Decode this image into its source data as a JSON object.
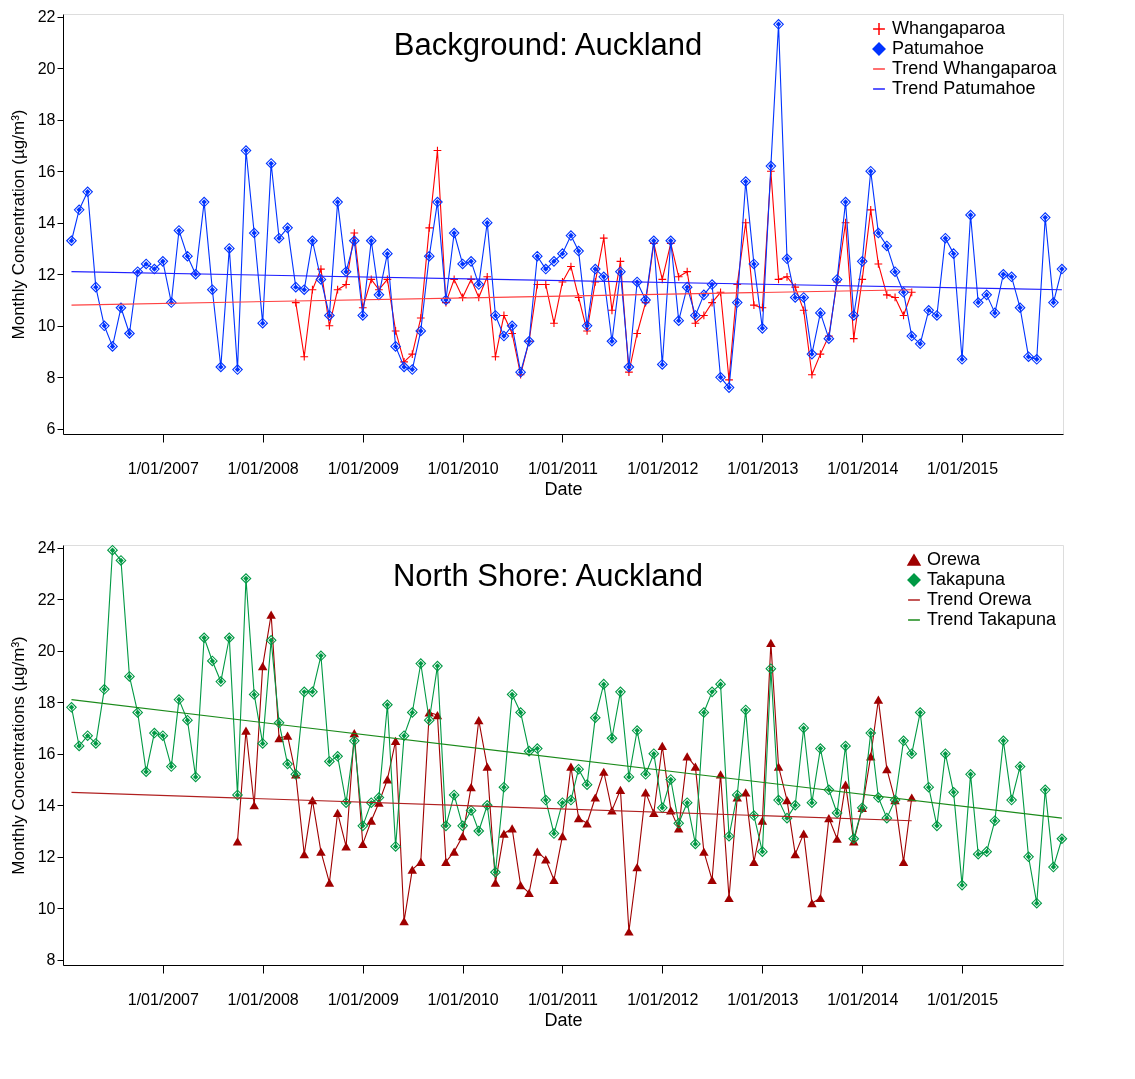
{
  "chart_data": [
    {
      "type": "line",
      "title": "Background: Auckland",
      "xlabel": "Date",
      "ylabel": "Monthly Concentration (µg/m³)",
      "legend": "top right",
      "xlim": [
        "2006-01-01",
        "2016-01-05"
      ],
      "ylim": [
        5.8,
        22.1
      ],
      "yticks": [
        6,
        8,
        10,
        12,
        14,
        16,
        18,
        20,
        22
      ],
      "xticks": [
        {
          "value": "2007-01-01",
          "label": "1/01/2007"
        },
        {
          "value": "2008-01-01",
          "label": "1/01/2008"
        },
        {
          "value": "2009-01-01",
          "label": "1/01/2009"
        },
        {
          "value": "2010-01-01",
          "label": "1/01/2010"
        },
        {
          "value": "2011-01-01",
          "label": "1/01/2011"
        },
        {
          "value": "2012-01-01",
          "label": "1/01/2012"
        },
        {
          "value": "2013-01-01",
          "label": "1/01/2013"
        },
        {
          "value": "2014-01-01",
          "label": "1/01/2014"
        },
        {
          "value": "2015-01-01",
          "label": "1/01/2015"
        }
      ],
      "series": [
        {
          "name": "Whangaparoa",
          "color": "#ff0000",
          "type": "line",
          "marker": "cross",
          "x": [
            "2008-05",
            "2008-06",
            "2008-07",
            "2008-08",
            "2008-09",
            "2008-10",
            "2008-11",
            "2008-12",
            "2009-01",
            "2009-02",
            "2009-03",
            "2009-04",
            "2009-05",
            "2009-06",
            "2009-07",
            "2009-08",
            "2009-09",
            "2009-10",
            "2009-11",
            "2009-12",
            "2010-01",
            "2010-02",
            "2010-03",
            "2010-04",
            "2010-05",
            "2010-06",
            "2010-07",
            "2010-08",
            "2010-09",
            "2010-10",
            "2010-11",
            "2010-12",
            "2011-01",
            "2011-02",
            "2011-03",
            "2011-04",
            "2011-05",
            "2011-06",
            "2011-07",
            "2011-08",
            "2011-09",
            "2011-10",
            "2011-11",
            "2011-12",
            "2012-01",
            "2012-02",
            "2012-03",
            "2012-04",
            "2012-05",
            "2012-06",
            "2012-07",
            "2012-08",
            "2012-09",
            "2012-10",
            "2012-11",
            "2012-12",
            "2013-01",
            "2013-02",
            "2013-03",
            "2013-04",
            "2013-05",
            "2013-06",
            "2013-07",
            "2013-08",
            "2013-09",
            "2013-10",
            "2013-11",
            "2013-12",
            "2014-01",
            "2014-02",
            "2014-03",
            "2014-04",
            "2014-05",
            "2014-06",
            "2014-07"
          ],
          "values": [
            10.9,
            8.8,
            11.4,
            12.2,
            10.0,
            11.4,
            11.6,
            13.6,
            10.7,
            11.8,
            11.4,
            11.8,
            9.8,
            8.6,
            8.9,
            10.3,
            13.8,
            16.8,
            10.9,
            11.8,
            11.1,
            11.8,
            11.1,
            11.9,
            8.8,
            10.4,
            9.7,
            8.1,
            9.4,
            11.6,
            11.6,
            10.1,
            11.7,
            12.3,
            11.1,
            9.8,
            11.7,
            13.4,
            10.6,
            12.5,
            8.2,
            9.7,
            10.9,
            13.2,
            11.8,
            13.2,
            11.9,
            12.1,
            10.1,
            10.4,
            10.9,
            11.3,
            7.9,
            11.6,
            14.0,
            10.8,
            10.7,
            16.0,
            11.8,
            11.9,
            11.5,
            10.6,
            8.1,
            8.9,
            9.6,
            11.7,
            14.0,
            9.5,
            11.8,
            14.5,
            12.4,
            11.2,
            11.1,
            10.4,
            11.3
          ]
        },
        {
          "name": "Patumahoe",
          "color": "#0033ff",
          "type": "line",
          "marker": "diamond",
          "x": [
            "2006-02",
            "2006-03",
            "2006-04",
            "2006-05",
            "2006-06",
            "2006-07",
            "2006-08",
            "2006-09",
            "2006-10",
            "2006-11",
            "2006-12",
            "2007-01",
            "2007-02",
            "2007-03",
            "2007-04",
            "2007-05",
            "2007-06",
            "2007-07",
            "2007-08",
            "2007-09",
            "2007-10",
            "2007-11",
            "2007-12",
            "2008-01",
            "2008-02",
            "2008-03",
            "2008-04",
            "2008-05",
            "2008-06",
            "2008-07",
            "2008-08",
            "2008-09",
            "2008-10",
            "2008-11",
            "2008-12",
            "2009-01",
            "2009-02",
            "2009-03",
            "2009-04",
            "2009-05",
            "2009-06",
            "2009-07",
            "2009-08",
            "2009-09",
            "2009-10",
            "2009-11",
            "2009-12",
            "2010-01",
            "2010-02",
            "2010-03",
            "2010-04",
            "2010-05",
            "2010-06",
            "2010-07",
            "2010-08",
            "2010-09",
            "2010-10",
            "2010-11",
            "2010-12",
            "2011-01",
            "2011-02",
            "2011-03",
            "2011-04",
            "2011-05",
            "2011-06",
            "2011-07",
            "2011-08",
            "2011-09",
            "2011-10",
            "2011-11",
            "2011-12",
            "2012-01",
            "2012-02",
            "2012-03",
            "2012-04",
            "2012-05",
            "2012-06",
            "2012-07",
            "2012-08",
            "2012-09",
            "2012-10",
            "2012-11",
            "2012-12",
            "2013-01",
            "2013-02",
            "2013-03",
            "2013-04",
            "2013-05",
            "2013-06",
            "2013-07",
            "2013-08",
            "2013-09",
            "2013-10",
            "2013-11",
            "2013-12",
            "2014-01",
            "2014-02",
            "2014-03",
            "2014-04",
            "2014-05",
            "2014-06",
            "2014-07",
            "2014-08",
            "2014-09",
            "2014-10",
            "2014-11",
            "2014-12",
            "2015-01",
            "2015-02",
            "2015-03",
            "2015-04",
            "2015-05",
            "2015-06",
            "2015-07",
            "2015-08",
            "2015-09",
            "2015-10",
            "2015-11",
            "2015-12",
            "2016-01"
          ],
          "values": [
            13.3,
            14.5,
            15.2,
            11.5,
            10.0,
            9.2,
            10.7,
            9.7,
            12.1,
            12.4,
            12.2,
            12.5,
            10.9,
            13.7,
            12.7,
            12.0,
            14.8,
            11.4,
            8.4,
            13.0,
            8.3,
            16.8,
            13.6,
            10.1,
            16.3,
            13.4,
            13.8,
            11.5,
            11.4,
            13.3,
            11.8,
            10.4,
            14.8,
            12.1,
            13.3,
            10.4,
            13.3,
            11.2,
            12.8,
            9.2,
            8.4,
            8.3,
            9.8,
            12.7,
            14.8,
            11.0,
            13.6,
            12.4,
            12.5,
            11.6,
            14.0,
            10.4,
            9.6,
            10.0,
            8.2,
            9.4,
            12.7,
            12.2,
            12.5,
            12.8,
            13.5,
            12.9,
            10.0,
            12.2,
            11.9,
            9.4,
            12.1,
            8.4,
            11.7,
            11.0,
            13.3,
            8.5,
            13.3,
            10.2,
            11.5,
            10.4,
            11.2,
            11.6,
            8.0,
            7.6,
            10.9,
            15.6,
            12.4,
            9.9,
            16.2,
            21.7,
            12.6,
            11.1,
            11.1,
            8.9,
            10.5,
            9.5,
            11.8,
            14.8,
            10.4,
            12.5,
            16.0,
            13.6,
            13.1,
            12.1,
            11.3,
            9.6,
            9.3,
            10.6,
            10.4,
            13.4,
            12.8,
            8.7,
            14.3,
            10.9,
            11.2,
            10.5,
            12.0,
            11.9,
            10.7,
            8.8,
            8.7,
            14.2,
            10.9,
            12.2
          ]
        },
        {
          "name": "Trend Whangaparoa",
          "color": "#ff4040",
          "type": "line",
          "marker": "none",
          "x": [
            "2006-02",
            "2014-07"
          ],
          "values": [
            10.8,
            11.4
          ]
        },
        {
          "name": "Trend Patumahoe",
          "color": "#2020ff",
          "type": "line",
          "marker": "none",
          "x": [
            "2006-02",
            "2016-01"
          ],
          "values": [
            12.1,
            11.4
          ]
        }
      ]
    },
    {
      "type": "line",
      "title": "North Shore: Auckland",
      "xlabel": "Date",
      "ylabel": "Monthly Concentrations (µg/m³)",
      "legend": "top right",
      "xlim": [
        "2006-01-01",
        "2016-01-05"
      ],
      "ylim": [
        7.8,
        24.1
      ],
      "yticks": [
        8,
        10,
        12,
        14,
        16,
        18,
        20,
        22,
        24
      ],
      "xticks": [
        {
          "value": "2007-01-01",
          "label": "1/01/2007"
        },
        {
          "value": "2008-01-01",
          "label": "1/01/2008"
        },
        {
          "value": "2009-01-01",
          "label": "1/01/2009"
        },
        {
          "value": "2010-01-01",
          "label": "1/01/2010"
        },
        {
          "value": "2011-01-01",
          "label": "1/01/2011"
        },
        {
          "value": "2012-01-01",
          "label": "1/01/2012"
        },
        {
          "value": "2013-01-01",
          "label": "1/01/2013"
        },
        {
          "value": "2014-01-01",
          "label": "1/01/2014"
        },
        {
          "value": "2015-01-01",
          "label": "1/01/2015"
        }
      ],
      "series": [
        {
          "name": "Orewa",
          "color": "#a00000",
          "type": "line",
          "marker": "triangle",
          "x": [
            "2007-10",
            "2007-11",
            "2007-12",
            "2008-01",
            "2008-02",
            "2008-03",
            "2008-04",
            "2008-05",
            "2008-06",
            "2008-07",
            "2008-08",
            "2008-09",
            "2008-10",
            "2008-11",
            "2008-12",
            "2009-01",
            "2009-02",
            "2009-03",
            "2009-04",
            "2009-05",
            "2009-06",
            "2009-07",
            "2009-08",
            "2009-09",
            "2009-10",
            "2009-11",
            "2009-12",
            "2010-01",
            "2010-02",
            "2010-03",
            "2010-04",
            "2010-05",
            "2010-06",
            "2010-07",
            "2010-08",
            "2010-09",
            "2010-10",
            "2010-11",
            "2010-12",
            "2011-01",
            "2011-02",
            "2011-03",
            "2011-04",
            "2011-05",
            "2011-06",
            "2011-07",
            "2011-08",
            "2011-09",
            "2011-10",
            "2011-11",
            "2011-12",
            "2012-01",
            "2012-02",
            "2012-03",
            "2012-04",
            "2012-05",
            "2012-06",
            "2012-07",
            "2012-08",
            "2012-09",
            "2012-10",
            "2012-11",
            "2012-12",
            "2013-01",
            "2013-02",
            "2013-03",
            "2013-04",
            "2013-05",
            "2013-06",
            "2013-07",
            "2013-08",
            "2013-09",
            "2013-10",
            "2013-11",
            "2013-12",
            "2014-01",
            "2014-02",
            "2014-03",
            "2014-04",
            "2014-05",
            "2014-06",
            "2014-07"
          ],
          "values": [
            12.6,
            16.9,
            14.0,
            19.4,
            21.4,
            16.6,
            16.7,
            15.2,
            12.1,
            14.2,
            12.2,
            11.0,
            13.7,
            12.4,
            16.8,
            12.5,
            13.4,
            14.1,
            15.0,
            16.5,
            9.5,
            11.5,
            11.8,
            17.6,
            17.5,
            11.8,
            12.2,
            12.8,
            14.7,
            17.3,
            15.5,
            11.0,
            12.9,
            13.1,
            10.9,
            10.6,
            12.2,
            11.9,
            11.1,
            12.8,
            15.5,
            13.5,
            13.3,
            14.3,
            15.3,
            13.8,
            14.6,
            9.1,
            11.6,
            14.5,
            13.7,
            16.3,
            13.8,
            13.1,
            15.9,
            15.5,
            12.2,
            11.1,
            15.2,
            10.4,
            14.3,
            14.5,
            11.8,
            13.4,
            20.3,
            15.5,
            14.2,
            12.1,
            12.9,
            10.2,
            10.4,
            13.5,
            12.7,
            14.8,
            12.6,
            13.9,
            15.9,
            18.1,
            15.4,
            14.2,
            11.8,
            14.3
          ]
        },
        {
          "name": "Takapuna",
          "color": "#009944",
          "type": "line",
          "marker": "diamond",
          "x": [
            "2006-02",
            "2006-03",
            "2006-04",
            "2006-05",
            "2006-06",
            "2006-07",
            "2006-08",
            "2006-09",
            "2006-10",
            "2006-11",
            "2006-12",
            "2007-01",
            "2007-02",
            "2007-03",
            "2007-04",
            "2007-05",
            "2007-06",
            "2007-07",
            "2007-08",
            "2007-09",
            "2007-10",
            "2007-11",
            "2007-12",
            "2008-01",
            "2008-02",
            "2008-03",
            "2008-04",
            "2008-05",
            "2008-06",
            "2008-07",
            "2008-08",
            "2008-09",
            "2008-10",
            "2008-11",
            "2008-12",
            "2009-01",
            "2009-02",
            "2009-03",
            "2009-04",
            "2009-05",
            "2009-06",
            "2009-07",
            "2009-08",
            "2009-09",
            "2009-10",
            "2009-11",
            "2009-12",
            "2010-01",
            "2010-02",
            "2010-03",
            "2010-04",
            "2010-05",
            "2010-06",
            "2010-07",
            "2010-08",
            "2010-09",
            "2010-10",
            "2010-11",
            "2010-12",
            "2011-01",
            "2011-02",
            "2011-03",
            "2011-04",
            "2011-05",
            "2011-06",
            "2011-07",
            "2011-08",
            "2011-09",
            "2011-10",
            "2011-11",
            "2011-12",
            "2012-01",
            "2012-02",
            "2012-03",
            "2012-04",
            "2012-05",
            "2012-06",
            "2012-07",
            "2012-08",
            "2012-09",
            "2012-10",
            "2012-11",
            "2012-12",
            "2013-01",
            "2013-02",
            "2013-03",
            "2013-04",
            "2013-05",
            "2013-06",
            "2013-07",
            "2013-08",
            "2013-09",
            "2013-10",
            "2013-11",
            "2013-12",
            "2014-01",
            "2014-02",
            "2014-03",
            "2014-04",
            "2014-05",
            "2014-06",
            "2014-07",
            "2014-08",
            "2014-09",
            "2014-10",
            "2014-11",
            "2014-12",
            "2015-01",
            "2015-02",
            "2015-03",
            "2015-04",
            "2015-05",
            "2015-06",
            "2015-07",
            "2015-08",
            "2015-09",
            "2015-10",
            "2015-11",
            "2015-12",
            "2016-01"
          ],
          "values": [
            17.8,
            16.3,
            16.7,
            16.4,
            18.5,
            23.9,
            23.5,
            19.0,
            17.6,
            15.3,
            16.8,
            16.7,
            15.5,
            18.1,
            17.3,
            15.1,
            20.5,
            19.6,
            18.8,
            20.5,
            14.4,
            22.8,
            18.3,
            16.4,
            20.4,
            17.2,
            15.6,
            15.2,
            18.4,
            18.4,
            19.8,
            15.7,
            15.9,
            14.1,
            16.5,
            13.2,
            14.1,
            14.3,
            17.9,
            12.4,
            16.7,
            17.6,
            19.5,
            17.3,
            19.4,
            13.2,
            14.4,
            13.2,
            13.8,
            13.0,
            14.0,
            11.4,
            14.7,
            18.3,
            17.6,
            16.1,
            16.2,
            14.2,
            12.9,
            14.1,
            14.2,
            15.4,
            14.8,
            17.4,
            18.7,
            16.6,
            18.4,
            15.1,
            16.9,
            15.2,
            16.0,
            13.9,
            15.0,
            13.3,
            14.1,
            12.5,
            17.6,
            18.4,
            18.7,
            12.8,
            14.4,
            17.7,
            13.6,
            12.2,
            19.3,
            14.2,
            13.5,
            14.0,
            17.0,
            14.1,
            16.2,
            14.6,
            13.7,
            16.3,
            12.7,
            13.9,
            16.8,
            14.3,
            13.5,
            14.2,
            16.5,
            16.0,
            17.6,
            14.7,
            13.2,
            16.0,
            14.5,
            10.9,
            15.2,
            12.1,
            12.2,
            13.4,
            16.5,
            14.2,
            15.5,
            12.0,
            10.2,
            14.6,
            11.6,
            12.7
          ]
        },
        {
          "name": "Trend Orewa",
          "color": "#b02020",
          "type": "line",
          "marker": "none",
          "x": [
            "2006-02",
            "2014-07"
          ],
          "values": [
            14.5,
            13.4
          ]
        },
        {
          "name": "Trend Takapuna",
          "color": "#1a8a1a",
          "type": "line",
          "marker": "none",
          "x": [
            "2006-02",
            "2016-01"
          ],
          "values": [
            18.1,
            13.5
          ]
        }
      ]
    }
  ]
}
